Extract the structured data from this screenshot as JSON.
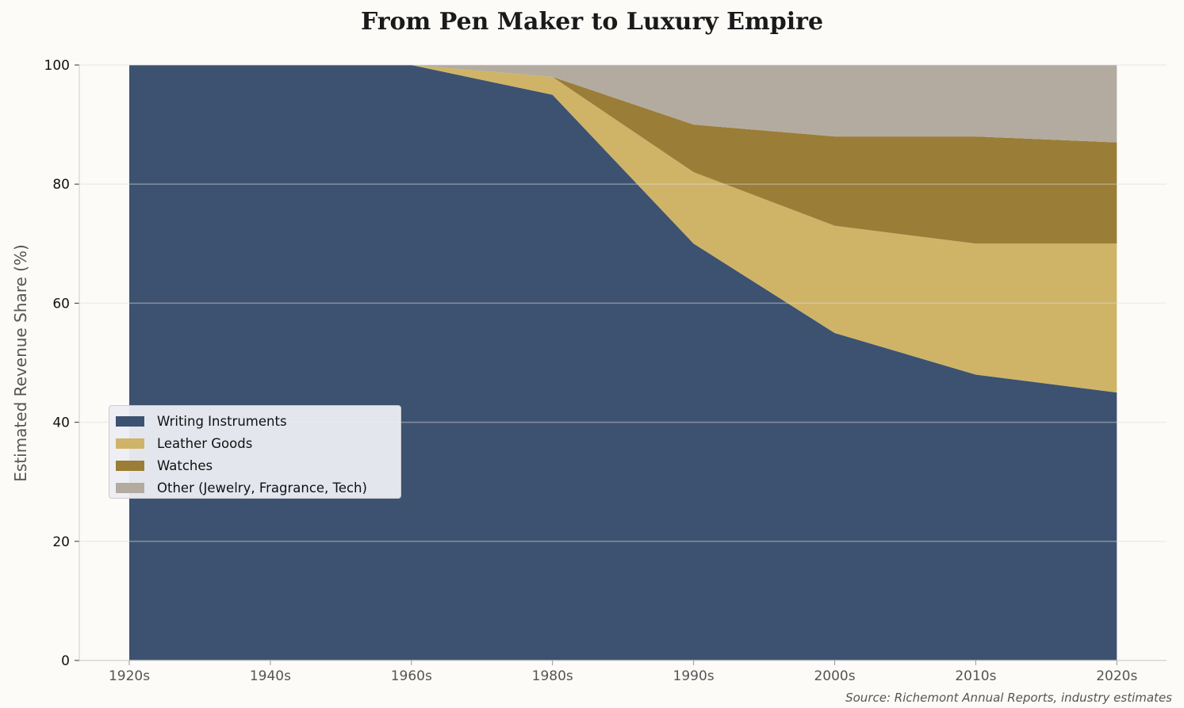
{
  "chart_data": {
    "type": "area",
    "stacked": true,
    "title": "From Pen Maker to Luxury Empire",
    "xlabel": "",
    "ylabel": "Estimated Revenue Share (%)",
    "categories": [
      "1920s",
      "1940s",
      "1960s",
      "1980s",
      "1990s",
      "2000s",
      "2010s",
      "2020s"
    ],
    "ylim": [
      0,
      100
    ],
    "yticks": [
      0,
      20,
      40,
      60,
      80,
      100
    ],
    "grid": true,
    "legend_position": "center-left",
    "series": [
      {
        "name": "Writing Instruments",
        "color": "#3d5271",
        "values": [
          100,
          100,
          100,
          95,
          70,
          55,
          48,
          45
        ]
      },
      {
        "name": "Leather Goods",
        "color": "#cfb467",
        "values": [
          0,
          0,
          0,
          3,
          12,
          18,
          22,
          25
        ]
      },
      {
        "name": "Watches",
        "color": "#9a7d37",
        "values": [
          0,
          0,
          0,
          0,
          8,
          15,
          18,
          17
        ]
      },
      {
        "name": "Other (Jewelry, Fragrance, Tech)",
        "color": "#b3aba0",
        "values": [
          0,
          0,
          0,
          2,
          10,
          12,
          12,
          13
        ]
      }
    ],
    "source": "Source: Richemont Annual Reports, industry estimates"
  }
}
